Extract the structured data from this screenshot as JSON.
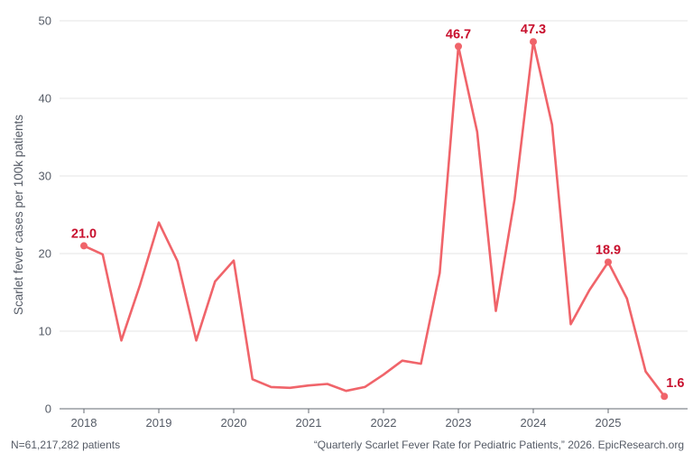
{
  "chart_data": {
    "type": "line",
    "title": "",
    "xlabel": "",
    "ylabel": "Scarlet fever cases per 100k patients",
    "ylim": [
      0,
      50
    ],
    "yticks": [
      0,
      10,
      20,
      30,
      40,
      50
    ],
    "xticks": [
      "2018",
      "2019",
      "2020",
      "2021",
      "2022",
      "2023",
      "2024",
      "2025"
    ],
    "xlim": [
      2017.75,
      2025.95
    ],
    "grid": "horizontal",
    "line_color": "#f0646a",
    "label_color": "#c8102e",
    "series": [
      {
        "x": [
          2018.0,
          2018.25,
          2018.5,
          2018.75,
          2019.0,
          2019.25,
          2019.5,
          2019.75,
          2020.0,
          2020.25,
          2020.5,
          2020.75,
          2021.0,
          2021.25,
          2021.5,
          2021.75,
          2022.0,
          2022.25,
          2022.5,
          2022.75,
          2023.0,
          2023.25,
          2023.5,
          2023.75,
          2024.0,
          2024.25,
          2024.5,
          2024.75,
          2025.0,
          2025.25,
          2025.5,
          2025.75
        ],
        "values": [
          21.0,
          19.9,
          8.8,
          16.0,
          24.0,
          19.0,
          8.8,
          16.4,
          19.1,
          3.8,
          2.8,
          2.7,
          3.0,
          3.2,
          2.3,
          2.8,
          4.4,
          6.2,
          5.8,
          17.5,
          46.7,
          35.7,
          12.6,
          27.0,
          47.3,
          36.6,
          10.9,
          15.3,
          18.9,
          14.2,
          4.8,
          1.6
        ]
      }
    ],
    "annotations": [
      {
        "x": 2018.0,
        "y": 21.0,
        "label": "21.0"
      },
      {
        "x": 2023.0,
        "y": 46.7,
        "label": "46.7"
      },
      {
        "x": 2024.0,
        "y": 47.3,
        "label": "47.3"
      },
      {
        "x": 2025.0,
        "y": 18.9,
        "label": "18.9"
      },
      {
        "x": 2025.75,
        "y": 1.6,
        "label": "1.6"
      }
    ]
  },
  "footer": {
    "left": "N=61,217,282 patients",
    "right": "“Quarterly Scarlet Fever Rate for Pediatric Patients,” 2026. EpicResearch.org"
  }
}
